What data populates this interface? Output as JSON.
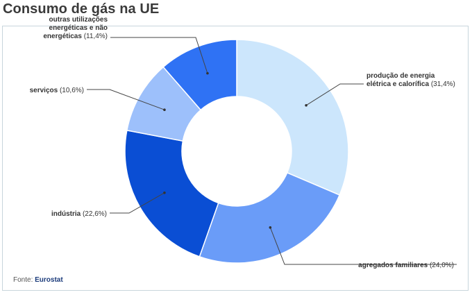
{
  "chart_data": {
    "type": "pie",
    "title": "Consumo de gás na UE",
    "slices": [
      {
        "lines": [
          "produção de energia",
          "elétrica e calorífica"
        ],
        "pct_text": "(31,4%)",
        "value": 31.4,
        "color": "#cce6fc"
      },
      {
        "lines": [
          "agregados familiares"
        ],
        "pct_text": "(24,0%)",
        "value": 24.0,
        "color": "#6a9cf8"
      },
      {
        "lines": [
          "indústria"
        ],
        "pct_text": "(22,6%)",
        "value": 22.6,
        "color": "#0a4ed4"
      },
      {
        "lines": [
          "serviços"
        ],
        "pct_text": "(10,6%)",
        "value": 10.6,
        "color": "#9dc0fb"
      },
      {
        "lines": [
          "outras utilizações",
          "energéticas e não",
          "energéticas"
        ],
        "pct_text": "(11,4%)",
        "value": 11.4,
        "color": "#2f72f4"
      }
    ]
  },
  "source": {
    "label": "Fonte:",
    "name": "Eurostat"
  }
}
